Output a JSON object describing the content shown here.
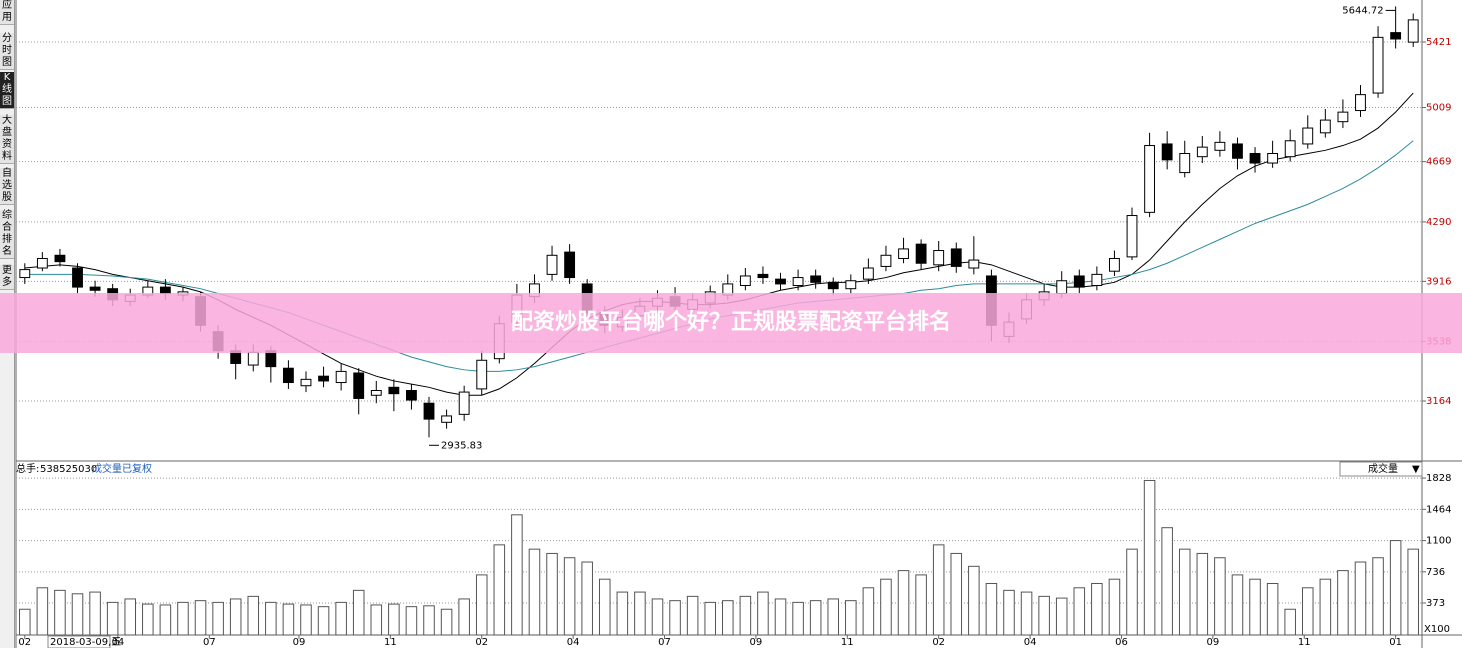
{
  "sidebar": {
    "tabs": [
      "应用",
      "分时图",
      "K线图",
      "大盘资料",
      "自选股",
      "综合排名",
      "更多"
    ],
    "active": 2
  },
  "banner": "配资炒股平台哪个好？正规股票配资平台排名",
  "chart_data": {
    "type": "candlestick",
    "up_color": "#ffffff",
    "down_color": "#000000",
    "edge_color": "#000000",
    "ylim": [
      2793,
      5685
    ],
    "yticks": [
      5421,
      5009,
      4669,
      4290,
      3916,
      3538,
      3164
    ],
    "grid": true,
    "xlim": [
      0,
      80
    ],
    "xticks": [
      {
        "value": 0,
        "label": "02"
      },
      {
        "value": 5.3,
        "label": "04"
      },
      {
        "value": 10.5,
        "label": "07"
      },
      {
        "value": 15.6,
        "label": "09"
      },
      {
        "value": 20.8,
        "label": "11"
      },
      {
        "value": 26.0,
        "label": "02"
      },
      {
        "value": 31.2,
        "label": "04"
      },
      {
        "value": 36.4,
        "label": "07"
      },
      {
        "value": 41.6,
        "label": "09"
      },
      {
        "value": 46.8,
        "label": "11"
      },
      {
        "value": 52.0,
        "label": "02"
      },
      {
        "value": 57.2,
        "label": "04"
      },
      {
        "value": 62.4,
        "label": "06"
      },
      {
        "value": 67.6,
        "label": "09"
      },
      {
        "value": 72.8,
        "label": "11"
      },
      {
        "value": 78.0,
        "label": "01"
      }
    ],
    "cursor_date": "2018-03-09,五",
    "candles": [
      [
        3940,
        4030,
        3900,
        3990
      ],
      [
        4000,
        4100,
        3980,
        4060
      ],
      [
        4080,
        4120,
        4010,
        4040
      ],
      [
        4000,
        4030,
        3840,
        3880
      ],
      [
        3880,
        3920,
        3820,
        3860
      ],
      [
        3870,
        3900,
        3760,
        3800
      ],
      [
        3790,
        3870,
        3760,
        3830
      ],
      [
        3830,
        3920,
        3810,
        3880
      ],
      [
        3880,
        3930,
        3800,
        3840
      ],
      [
        3830,
        3880,
        3790,
        3850
      ],
      [
        3820,
        3850,
        3600,
        3640
      ],
      [
        3600,
        3640,
        3430,
        3480
      ],
      [
        3480,
        3520,
        3300,
        3400
      ],
      [
        3390,
        3520,
        3350,
        3470
      ],
      [
        3480,
        3510,
        3280,
        3380
      ],
      [
        3370,
        3420,
        3240,
        3280
      ],
      [
        3260,
        3350,
        3220,
        3300
      ],
      [
        3320,
        3380,
        3250,
        3290
      ],
      [
        3280,
        3400,
        3230,
        3350
      ],
      [
        3340,
        3370,
        3080,
        3180
      ],
      [
        3200,
        3290,
        3150,
        3230
      ],
      [
        3250,
        3300,
        3100,
        3210
      ],
      [
        3230,
        3270,
        3110,
        3170
      ],
      [
        3150,
        3190,
        2935.83,
        3050
      ],
      [
        3030,
        3110,
        2990,
        3070
      ],
      [
        3080,
        3260,
        3040,
        3220
      ],
      [
        3240,
        3480,
        3200,
        3420
      ],
      [
        3430,
        3700,
        3400,
        3650
      ],
      [
        3660,
        3900,
        3620,
        3830
      ],
      [
        3820,
        3960,
        3780,
        3900
      ],
      [
        3960,
        4140,
        3920,
        4080
      ],
      [
        4100,
        4150,
        3900,
        3940
      ],
      [
        3900,
        3930,
        3680,
        3720
      ],
      [
        3720,
        3760,
        3590,
        3640
      ],
      [
        3630,
        3740,
        3600,
        3690
      ],
      [
        3700,
        3810,
        3670,
        3760
      ],
      [
        3760,
        3860,
        3720,
        3810
      ],
      [
        3820,
        3880,
        3720,
        3760
      ],
      [
        3740,
        3840,
        3700,
        3800
      ],
      [
        3780,
        3890,
        3750,
        3850
      ],
      [
        3830,
        3960,
        3800,
        3900
      ],
      [
        3890,
        4000,
        3860,
        3950
      ],
      [
        3960,
        4010,
        3900,
        3940
      ],
      [
        3930,
        3970,
        3860,
        3900
      ],
      [
        3890,
        3990,
        3860,
        3940
      ],
      [
        3950,
        3990,
        3870,
        3910
      ],
      [
        3910,
        3940,
        3830,
        3870
      ],
      [
        3870,
        3960,
        3840,
        3920
      ],
      [
        3930,
        4060,
        3900,
        4000
      ],
      [
        4010,
        4140,
        3980,
        4080
      ],
      [
        4060,
        4190,
        4030,
        4120
      ],
      [
        4150,
        4180,
        3990,
        4030
      ],
      [
        4020,
        4170,
        3980,
        4110
      ],
      [
        4120,
        4160,
        3970,
        4010
      ],
      [
        4000,
        4200,
        3960,
        4050
      ],
      [
        3950,
        3990,
        3540,
        3640
      ],
      [
        3570,
        3720,
        3530,
        3660
      ],
      [
        3680,
        3840,
        3650,
        3800
      ],
      [
        3800,
        3900,
        3760,
        3850
      ],
      [
        3840,
        3980,
        3810,
        3920
      ],
      [
        3950,
        3990,
        3840,
        3880
      ],
      [
        3890,
        4010,
        3860,
        3960
      ],
      [
        3980,
        4110,
        3950,
        4060
      ],
      [
        4070,
        4380,
        4050,
        4330
      ],
      [
        4350,
        4850,
        4320,
        4770
      ],
      [
        4780,
        4860,
        4620,
        4680
      ],
      [
        4600,
        4800,
        4570,
        4720
      ],
      [
        4700,
        4830,
        4660,
        4760
      ],
      [
        4740,
        4860,
        4700,
        4790
      ],
      [
        4780,
        4820,
        4620,
        4690
      ],
      [
        4720,
        4760,
        4600,
        4660
      ],
      [
        4660,
        4800,
        4630,
        4720
      ],
      [
        4700,
        4870,
        4670,
        4800
      ],
      [
        4780,
        4960,
        4750,
        4880
      ],
      [
        4850,
        5000,
        4820,
        4930
      ],
      [
        4920,
        5060,
        4880,
        4980
      ],
      [
        4990,
        5150,
        4950,
        5090
      ],
      [
        5100,
        5520,
        5070,
        5450
      ],
      [
        5480,
        5644.72,
        5380,
        5440
      ],
      [
        5420,
        5600,
        5390,
        5560
      ]
    ],
    "high_index": 78,
    "low_index": 23,
    "series": [
      {
        "color": "#000000",
        "values": [
          4000,
          4010,
          4020,
          4010,
          3990,
          3960,
          3940,
          3920,
          3900,
          3880,
          3850,
          3800,
          3740,
          3690,
          3640,
          3580,
          3520,
          3460,
          3400,
          3360,
          3320,
          3290,
          3270,
          3250,
          3220,
          3200,
          3200,
          3240,
          3310,
          3400,
          3500,
          3600,
          3680,
          3730,
          3770,
          3790,
          3790,
          3780,
          3770,
          3770,
          3780,
          3800,
          3830,
          3860,
          3880,
          3900,
          3910,
          3910,
          3920,
          3940,
          3970,
          3990,
          4010,
          4030,
          4040,
          4020,
          3980,
          3940,
          3900,
          3880,
          3880,
          3890,
          3910,
          3960,
          4050,
          4170,
          4290,
          4400,
          4500,
          4580,
          4640,
          4680,
          4700,
          4720,
          4740,
          4770,
          4810,
          4880,
          4980,
          5100
        ]
      },
      {
        "color": "#2b8c9c",
        "values": [
          3960,
          3960,
          3960,
          3960,
          3955,
          3950,
          3940,
          3930,
          3910,
          3890,
          3870,
          3840,
          3810,
          3780,
          3750,
          3720,
          3680,
          3640,
          3600,
          3560,
          3520,
          3480,
          3440,
          3410,
          3380,
          3360,
          3350,
          3350,
          3360,
          3380,
          3410,
          3440,
          3470,
          3500,
          3530,
          3560,
          3590,
          3620,
          3650,
          3680,
          3700,
          3720,
          3740,
          3760,
          3780,
          3790,
          3800,
          3810,
          3820,
          3830,
          3840,
          3860,
          3870,
          3890,
          3900,
          3900,
          3900,
          3900,
          3900,
          3900,
          3910,
          3920,
          3940,
          3960,
          3990,
          4030,
          4080,
          4130,
          4180,
          4230,
          4280,
          4320,
          4360,
          4400,
          4450,
          4500,
          4560,
          4630,
          4710,
          4800
        ]
      }
    ],
    "volume_label": "总手:",
    "volume_total": 538525030,
    "volume_note": "成交量已复权",
    "volume_menu": "成交量",
    "volume_unit": "X100",
    "volume_ylim": [
      0,
      1922
    ],
    "volume_yticks": [
      1828,
      1464,
      1100,
      736,
      373
    ],
    "volume": [
      300,
      550,
      520,
      480,
      500,
      380,
      420,
      360,
      350,
      380,
      400,
      380,
      420,
      450,
      380,
      360,
      350,
      330,
      380,
      520,
      350,
      360,
      330,
      340,
      300,
      420,
      700,
      1050,
      1400,
      1000,
      950,
      900,
      850,
      650,
      500,
      500,
      420,
      400,
      450,
      380,
      400,
      450,
      500,
      420,
      380,
      400,
      420,
      400,
      550,
      650,
      750,
      700,
      1050,
      950,
      800,
      600,
      520,
      500,
      450,
      430,
      550,
      600,
      650,
      1000,
      1800,
      1250,
      1000,
      950,
      900,
      700,
      650,
      600,
      300,
      550,
      650,
      750,
      850,
      900,
      1100,
      1000
    ]
  }
}
